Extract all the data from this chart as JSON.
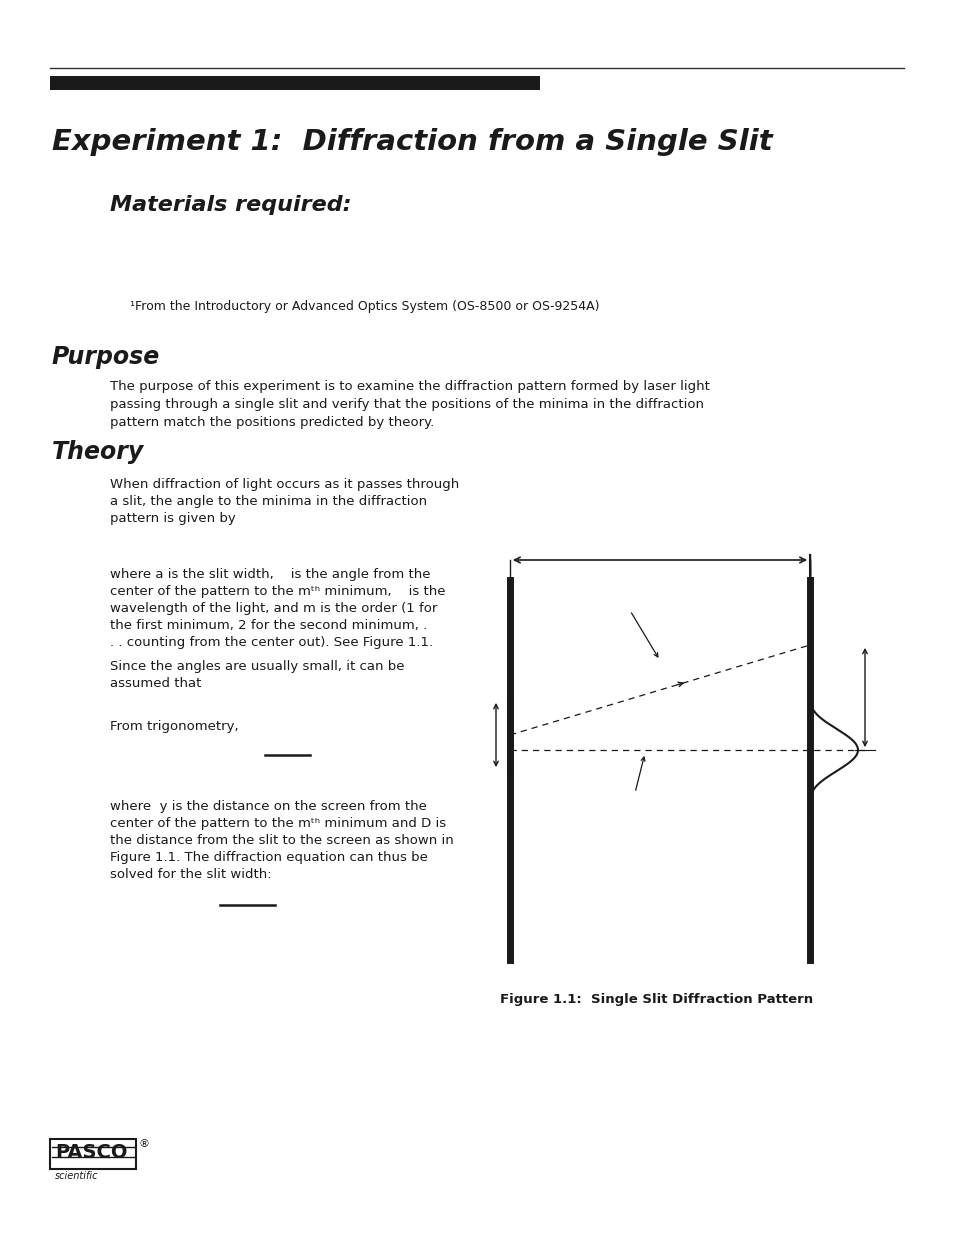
{
  "bg_color": "#ffffff",
  "title_line1": "Experiment 1:  Diffraction from a Single Slit",
  "materials_header": "Materials required:",
  "footnote": "¹From the Introductory or Advanced Optics System (OS-8500 or OS-9254A)",
  "purpose_header": "Purpose",
  "purpose_text_lines": [
    "The purpose of this experiment is to examine the diffraction pattern formed by laser light",
    "passing through a single slit and verify that the positions of the minima in the diffraction",
    "pattern match the positions predicted by theory."
  ],
  "theory_header": "Theory",
  "theory_text1_lines": [
    "When diffraction of light occurs as it passes through",
    "a slit, the angle to the minima in the diffraction",
    "pattern is given by"
  ],
  "theory_text2_lines": [
    "where a is the slit width,    is the angle from the",
    "center of the pattern to the mᵗʰ minimum,    is the",
    "wavelength of the light, and m is the order (1 for",
    "the first minimum, 2 for the second minimum, .",
    ". . counting from the center out). See Figure 1.1."
  ],
  "theory_text3_lines": [
    "Since the angles are usually small, it can be",
    "assumed that"
  ],
  "theory_text4": "From trigonometry,",
  "theory_text5_lines": [
    "where  y is the distance on the screen from the",
    "center of the pattern to the mᵗʰ minimum and D is",
    "the distance from the slit to the screen as shown in",
    "Figure 1.1. The diffraction equation can thus be",
    "solved for the slit width:"
  ],
  "fig_caption": "Figure 1.1:  Single Slit Diffraction Pattern",
  "pasco_text": "PASCO",
  "pasco_sub": "scientific"
}
